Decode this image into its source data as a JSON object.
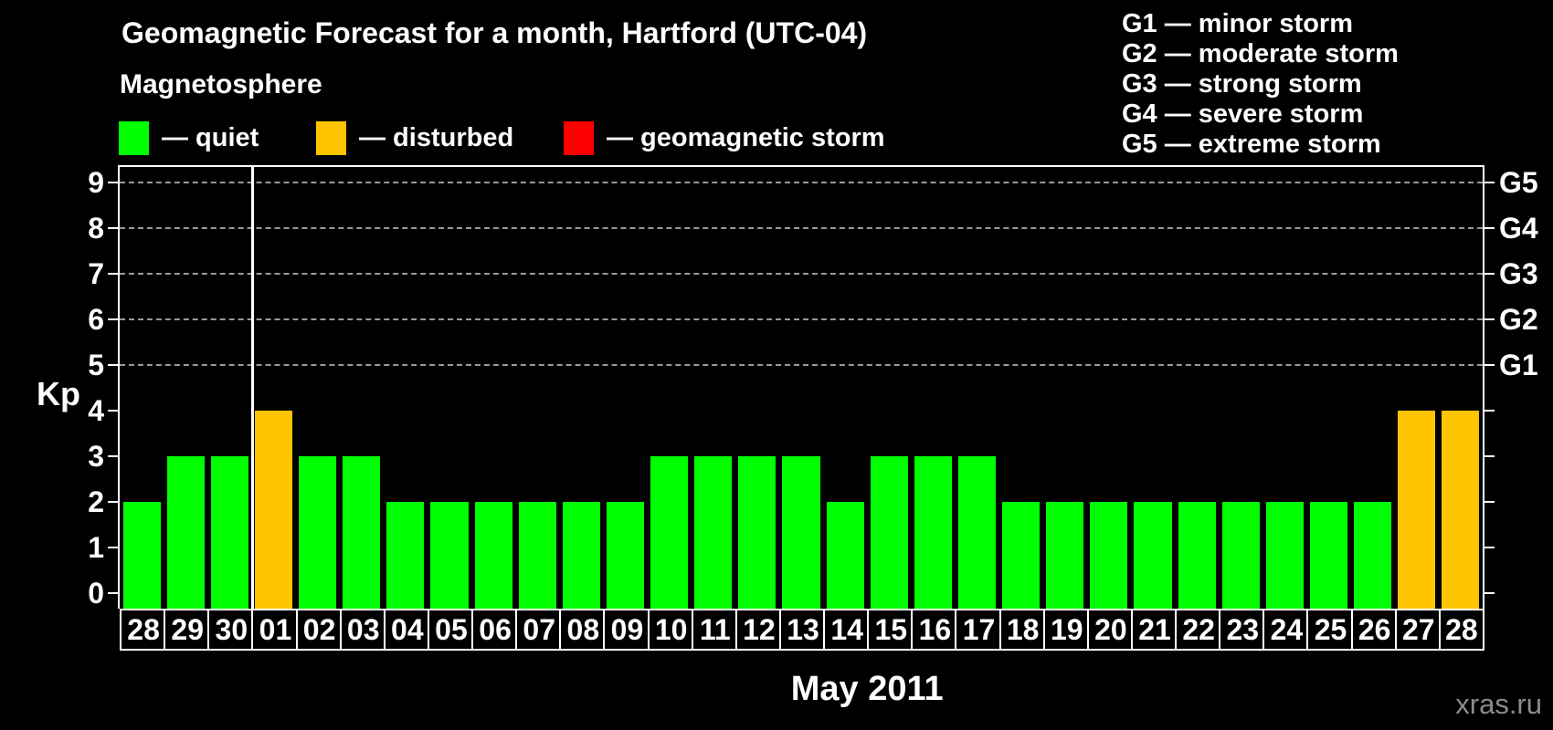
{
  "title": "Geomagnetic Forecast for a month, Hartford (UTC-04)",
  "subtitle": "Magnetosphere",
  "legend": {
    "items": [
      {
        "name": "quiet",
        "label": "— quiet",
        "color": "#00ff00"
      },
      {
        "name": "disturbed",
        "label": "— disturbed",
        "color": "#ffc400"
      },
      {
        "name": "storm",
        "label": "— geomagnetic storm",
        "color": "#ff0000"
      }
    ]
  },
  "g_legend": {
    "items": [
      "G1 — minor storm",
      "G2 — moderate storm",
      "G3 — strong storm",
      "G4 — severe storm",
      "G5 — extreme storm"
    ]
  },
  "chart_data": {
    "type": "bar",
    "title": "Geomagnetic Forecast for a month, Hartford (UTC-04)",
    "ylabel": "Kp",
    "xlabel": "May 2011",
    "ylim": [
      -0.35,
      9.35
    ],
    "grid": "dashed horizontal lines at Kp 5-9 only",
    "left_ticks": [
      0,
      1,
      2,
      3,
      4,
      5,
      6,
      7,
      8,
      9
    ],
    "right_ticks": [
      {
        "kp": 5,
        "label": "G1"
      },
      {
        "kp": 6,
        "label": "G2"
      },
      {
        "kp": 7,
        "label": "G3"
      },
      {
        "kp": 8,
        "label": "G4"
      },
      {
        "kp": 9,
        "label": "G5"
      }
    ],
    "separator_after_index": 2,
    "categories": [
      "28",
      "29",
      "30",
      "01",
      "02",
      "03",
      "04",
      "05",
      "06",
      "07",
      "08",
      "09",
      "10",
      "11",
      "12",
      "13",
      "14",
      "15",
      "16",
      "17",
      "18",
      "19",
      "20",
      "21",
      "22",
      "23",
      "24",
      "25",
      "26",
      "27",
      "28"
    ],
    "values": [
      2,
      3,
      3,
      4,
      3,
      3,
      2,
      2,
      2,
      2,
      2,
      2,
      3,
      3,
      3,
      3,
      2,
      3,
      3,
      3,
      2,
      2,
      2,
      2,
      2,
      2,
      2,
      2,
      2,
      4,
      4
    ],
    "states": [
      "quiet",
      "quiet",
      "quiet",
      "disturbed",
      "quiet",
      "quiet",
      "quiet",
      "quiet",
      "quiet",
      "quiet",
      "quiet",
      "quiet",
      "quiet",
      "quiet",
      "quiet",
      "quiet",
      "quiet",
      "quiet",
      "quiet",
      "quiet",
      "quiet",
      "quiet",
      "quiet",
      "quiet",
      "quiet",
      "quiet",
      "quiet",
      "quiet",
      "quiet",
      "disturbed",
      "disturbed"
    ],
    "colors": {
      "quiet": "#00ff00",
      "disturbed": "#ffc400",
      "storm": "#ff0000"
    }
  },
  "watermark": "xras.ru"
}
